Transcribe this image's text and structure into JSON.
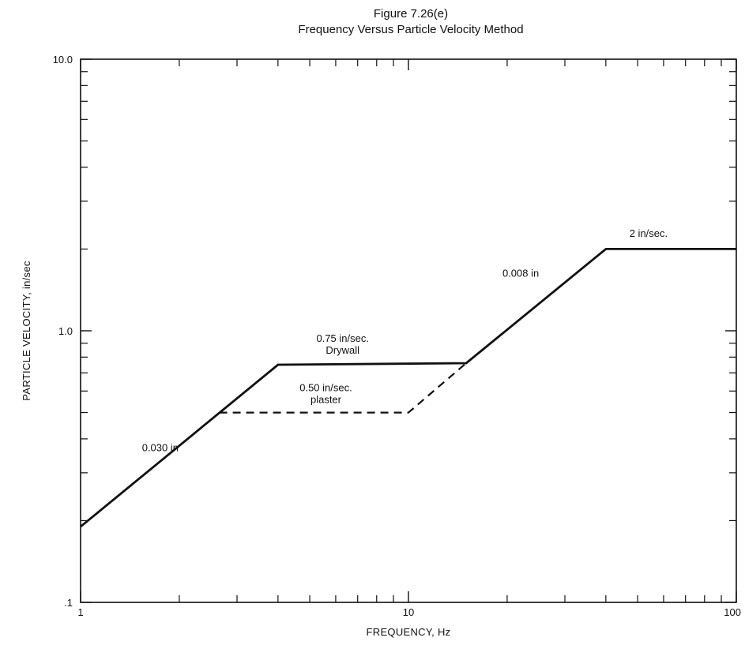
{
  "chart_data": {
    "type": "line",
    "title": "Figure 7.26(e)",
    "subtitle": "Frequency Versus Particle Velocity Method",
    "xlabel": "FREQUENCY, Hz",
    "ylabel": "PARTICLE VELOCITY, in/sec",
    "xscale": "log",
    "yscale": "log",
    "xlim": [
      1,
      100
    ],
    "ylim": [
      0.1,
      10
    ],
    "grid": false,
    "legend": "none",
    "x_ticks": [
      {
        "value": 1,
        "label": "1"
      },
      {
        "value": 10,
        "label": "10"
      },
      {
        "value": 100,
        "label": "100"
      }
    ],
    "y_ticks": [
      {
        "value": 0.1,
        "label": ".1"
      },
      {
        "value": 1,
        "label": "1.0"
      },
      {
        "value": 10,
        "label": "10.0"
      }
    ],
    "series": [
      {
        "style": "solid",
        "x": [
          1,
          4,
          15,
          40,
          100
        ],
        "y": [
          0.19,
          0.75,
          0.76,
          2.0,
          2.0
        ]
      },
      {
        "style": "dashed",
        "x": [
          2.65,
          10,
          15
        ],
        "y": [
          0.5,
          0.5,
          0.76
        ]
      }
    ],
    "annotations": [
      {
        "lines": [
          "0.030 in"
        ],
        "x": 1.75,
        "y": 0.36
      },
      {
        "lines": [
          "0.75 in/sec.",
          "Drywall"
        ],
        "x": 6.3,
        "y": 0.91
      },
      {
        "lines": [
          "0.50 in/sec.",
          "plaster"
        ],
        "x": 5.6,
        "y": 0.6
      },
      {
        "lines": [
          "0.008 in"
        ],
        "x": 22,
        "y": 1.58
      },
      {
        "lines": [
          "2 in/sec."
        ],
        "x": 54,
        "y": 2.22
      }
    ]
  }
}
